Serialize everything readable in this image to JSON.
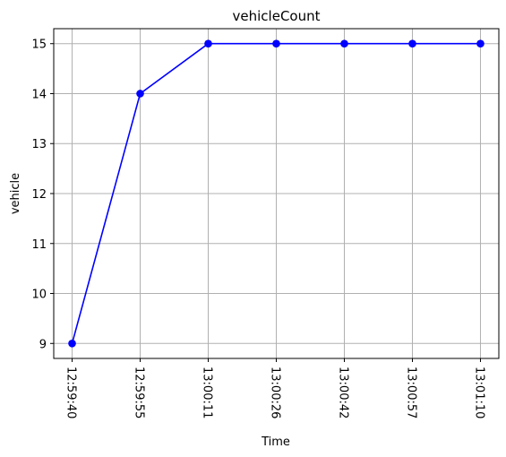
{
  "chart_data": {
    "type": "line",
    "title": "vehicleCount",
    "xlabel": "Time",
    "ylabel": "vehicle",
    "categories": [
      "12:59:40",
      "12:59:55",
      "13:00:11",
      "13:00:26",
      "13:00:42",
      "13:00:57",
      "13:01:10"
    ],
    "series": [
      {
        "values": [
          9,
          14,
          15,
          15,
          15,
          15,
          15
        ],
        "color": "#0000ff",
        "marker": "circle"
      }
    ],
    "yticks": [
      9,
      10,
      11,
      12,
      13,
      14,
      15
    ],
    "ylim": [
      8.7,
      15.3
    ],
    "grid": true,
    "xtick_rotation": 90
  }
}
